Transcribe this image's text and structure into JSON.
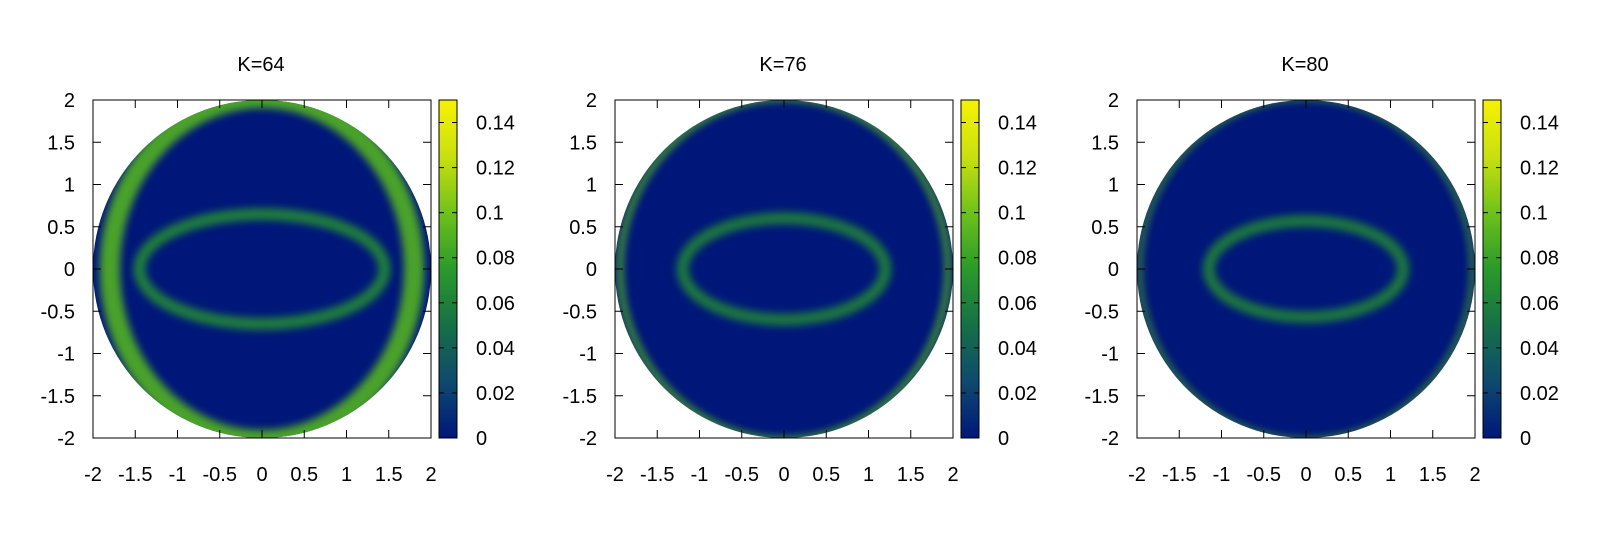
{
  "chart_data": [
    {
      "type": "heatmap",
      "title": "K=64",
      "xlabel": "",
      "ylabel": "",
      "xlim": [
        -2,
        2
      ],
      "ylim": [
        -2,
        2
      ],
      "x_ticks": [
        "-2",
        "-1.5",
        "-1",
        "-0.5",
        "0",
        "0.5",
        "1",
        "1.5",
        "2"
      ],
      "y_ticks": [
        "-2",
        "-1.5",
        "-1",
        "-0.5",
        "0",
        "0.5",
        "1",
        "1.5",
        "2"
      ],
      "colorbar": {
        "range": [
          0,
          0.15
        ],
        "ticks": [
          "0",
          "0.02",
          "0.04",
          "0.06",
          "0.08",
          "0.1",
          "0.12",
          "0.14"
        ]
      },
      "domain": {
        "shape": "disk",
        "center": [
          0,
          0
        ],
        "radius": 2
      },
      "features": [
        {
          "kind": "ellipse-ring",
          "center": [
            0,
            0
          ],
          "rx": 1.45,
          "ry": 0.65,
          "peak_value": 0.07
        },
        {
          "kind": "edge-bands",
          "inset": 0.2,
          "peak_value": 0.09
        }
      ]
    },
    {
      "type": "heatmap",
      "title": "K=76",
      "xlabel": "",
      "ylabel": "",
      "xlim": [
        -2,
        2
      ],
      "ylim": [
        -2,
        2
      ],
      "x_ticks": [
        "-2",
        "-1.5",
        "-1",
        "-0.5",
        "0",
        "0.5",
        "1",
        "1.5",
        "2"
      ],
      "y_ticks": [
        "-2",
        "-1.5",
        "-1",
        "-0.5",
        "0",
        "0.5",
        "1",
        "1.5",
        "2"
      ],
      "colorbar": {
        "range": [
          0,
          0.15
        ],
        "ticks": [
          "0",
          "0.02",
          "0.04",
          "0.06",
          "0.08",
          "0.1",
          "0.12",
          "0.14"
        ]
      },
      "domain": {
        "shape": "disk",
        "center": [
          0,
          0
        ],
        "radius": 2
      },
      "features": [
        {
          "kind": "ellipse-ring",
          "center": [
            0,
            0
          ],
          "rx": 1.2,
          "ry": 0.6,
          "peak_value": 0.065
        },
        {
          "kind": "edge-bands",
          "inset": 0.06,
          "peak_value": 0.09
        }
      ]
    },
    {
      "type": "heatmap",
      "title": "K=80",
      "xlabel": "",
      "ylabel": "",
      "xlim": [
        -2,
        2
      ],
      "ylim": [
        -2,
        2
      ],
      "x_ticks": [
        "-2",
        "-1.5",
        "-1",
        "-0.5",
        "0",
        "0.5",
        "1",
        "1.5",
        "2"
      ],
      "y_ticks": [
        "-2",
        "-1.5",
        "-1",
        "-0.5",
        "0",
        "0.5",
        "1",
        "1.5",
        "2"
      ],
      "colorbar": {
        "range": [
          0,
          0.15
        ],
        "ticks": [
          "0",
          "0.02",
          "0.04",
          "0.06",
          "0.08",
          "0.1",
          "0.12",
          "0.14"
        ]
      },
      "domain": {
        "shape": "disk",
        "center": [
          0,
          0
        ],
        "radius": 2
      },
      "features": [
        {
          "kind": "ellipse-ring",
          "center": [
            0,
            0
          ],
          "rx": 1.15,
          "ry": 0.57,
          "peak_value": 0.065
        },
        {
          "kind": "edge-bands",
          "inset": 0.03,
          "peak_value": 0.09
        }
      ]
    }
  ],
  "colors": {
    "background": "#00177a",
    "colormap": [
      "#00177a",
      "#0e4a6e",
      "#167046",
      "#2a9a2a",
      "#6fc21a",
      "#c9e010",
      "#f6f200"
    ]
  }
}
